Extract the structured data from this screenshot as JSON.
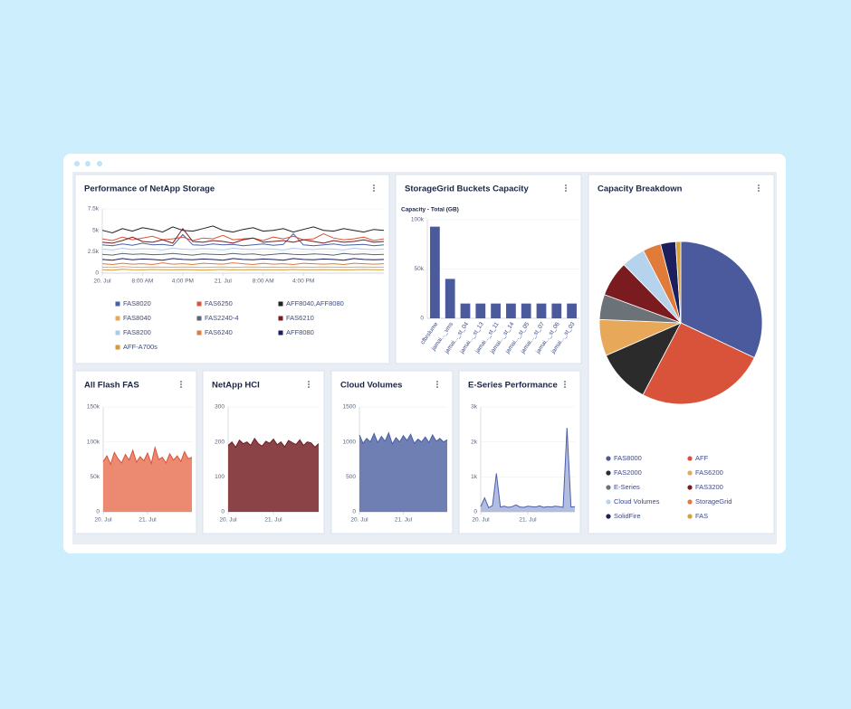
{
  "chart_data": [
    {
      "type": "line",
      "title": "Performance of NetApp Storage",
      "x": [
        0,
        2,
        4,
        6,
        8,
        10,
        12,
        14,
        16,
        18,
        20,
        22,
        24,
        26,
        28,
        30,
        32,
        34,
        36,
        38,
        40,
        42,
        44,
        46,
        48,
        50,
        52,
        54,
        56
      ],
      "xlim": [
        0,
        56
      ],
      "xticks": [
        {
          "value": 0,
          "label": "20. Jul"
        },
        {
          "value": 8,
          "label": "8:00 AM"
        },
        {
          "value": 16,
          "label": "4:00 PM"
        },
        {
          "value": 24,
          "label": "21. Jul"
        },
        {
          "value": 32,
          "label": "8:00 AM"
        },
        {
          "value": 40,
          "label": "4:00 PM"
        }
      ],
      "ylim": [
        0,
        7500
      ],
      "yticks": [
        0,
        {
          "value": 2500,
          "label": "2.5k"
        },
        {
          "value": 5000,
          "label": "5k"
        },
        {
          "value": 7500,
          "label": "7.5k"
        }
      ],
      "grid": true,
      "series": [
        {
          "name": "FAS8020",
          "color": "#4a5fa8",
          "values": [
            3300,
            3200,
            3400,
            3250,
            3500,
            3300,
            3350,
            3200,
            4500,
            3300,
            3250,
            3400,
            3300,
            3350,
            3200,
            3300,
            3400,
            3250,
            3350,
            4600,
            3300,
            3200,
            3300,
            3400,
            3250,
            3300,
            3350,
            3200,
            3300
          ]
        },
        {
          "name": "FAS6250",
          "color": "#d9533a",
          "values": [
            4000,
            3800,
            4200,
            3900,
            4100,
            4300,
            3900,
            4000,
            4200,
            3800,
            4100,
            4000,
            4400,
            3900,
            4000,
            4100,
            3800,
            4200,
            4000,
            4300,
            3900,
            4000,
            4600,
            4100,
            3900,
            4000,
            4200,
            3800,
            4000
          ]
        },
        {
          "name": "AFF8040,AFF8080",
          "color": "#222222",
          "values": [
            5000,
            4700,
            5200,
            4900,
            5300,
            5100,
            4800,
            5400,
            5000,
            4900,
            5200,
            5500,
            5000,
            4800,
            5100,
            5300,
            4900,
            5000,
            5200,
            4800,
            5100,
            5400,
            5000,
            4900,
            5200,
            5000,
            4800,
            5100,
            5000
          ]
        },
        {
          "name": "FAS8040",
          "color": "#e8a85a",
          "values": [
            700,
            650,
            750,
            700,
            680,
            720,
            700,
            690,
            710,
            700,
            650,
            700,
            720,
            680,
            700,
            710,
            690,
            700,
            680,
            720,
            700,
            690,
            710,
            700,
            680,
            700,
            720,
            690,
            700
          ]
        },
        {
          "name": "FAS2240-4",
          "color": "#5d6670",
          "values": [
            2200,
            2100,
            2300,
            2200,
            2250,
            2150,
            2200,
            2300,
            2200,
            2100,
            2250,
            2200,
            2150,
            2300,
            2200,
            2250,
            2100,
            2200,
            2300,
            2200,
            2150,
            2250,
            2200,
            2100,
            2300,
            2200,
            2250,
            2150,
            2200
          ]
        },
        {
          "name": "FAS6210",
          "color": "#7a1c1f",
          "values": [
            3600,
            3500,
            3800,
            4200,
            3700,
            3600,
            3900,
            3500,
            5200,
            3700,
            3600,
            3800,
            3700,
            3500,
            3900,
            4100,
            3600,
            3700,
            3800,
            3600,
            3900,
            3700,
            3500,
            3800,
            3600,
            3700,
            3900,
            3600,
            3700
          ]
        },
        {
          "name": "FAS8200",
          "color": "#a9cbe8",
          "values": [
            2800,
            2700,
            2900,
            2750,
            2850,
            2800,
            2700,
            2900,
            2800,
            2750,
            2850,
            2800,
            2700,
            2900,
            2800,
            2750,
            2850,
            2800,
            2700,
            2900,
            2800,
            2750,
            2850,
            2800,
            2700,
            2900,
            2800,
            2750,
            2800
          ]
        },
        {
          "name": "FAS6240",
          "color": "#e07b39",
          "values": [
            1100,
            1000,
            1150,
            1050,
            1100,
            1000,
            1200,
            1050,
            1100,
            1000,
            1150,
            1100,
            1050,
            1200,
            1100,
            1000,
            1150,
            1050,
            1100,
            1000,
            1150,
            1100,
            1050,
            1100,
            1000,
            1150,
            1100,
            1050,
            1100
          ]
        },
        {
          "name": "AFF8080",
          "color": "#1c1f5e",
          "values": [
            1600,
            1500,
            1700,
            1550,
            1650,
            1600,
            1500,
            1700,
            1600,
            1550,
            1650,
            1600,
            1500,
            1700,
            1600,
            1550,
            1650,
            1600,
            1500,
            1700,
            1600,
            1550,
            1650,
            1600,
            1500,
            1700,
            1600,
            1550,
            1600
          ]
        },
        {
          "name": "AFF-A700s",
          "color": "#d69a3a",
          "values": [
            400,
            350,
            450,
            400,
            380,
            420,
            400,
            390,
            410,
            400,
            350,
            400,
            420,
            380,
            400,
            410,
            390,
            400,
            380,
            420,
            400,
            390,
            410,
            400,
            380,
            400,
            420,
            390,
            400
          ]
        }
      ]
    },
    {
      "type": "bar",
      "title": "StorageGrid Buckets Capacity",
      "y_label": "Capacity - Total (GB)",
      "color": "#4a5a9c",
      "categories": [
        "cfbrslume",
        "jamai..._vms",
        "jamai..._st_04",
        "jamai..._st_13",
        "jamai..._st_11",
        "jamai..._st_14",
        "jamai..._st_05",
        "jamai..._st_07",
        "jamai..._st_06",
        "jamai..._st_03"
      ],
      "values": [
        93000,
        40000,
        15000,
        15000,
        15000,
        15000,
        15000,
        15000,
        15000,
        15000
      ],
      "ylim": [
        0,
        100000
      ],
      "yticks": [
        0,
        {
          "value": 50000,
          "label": "50k"
        },
        {
          "value": 100000,
          "label": "100k"
        }
      ],
      "grid": true
    },
    {
      "type": "pie",
      "title": "Capacity Breakdown",
      "categories": [
        "FAS8000",
        "AFF",
        "FAS2000",
        "FAS6200",
        "E-Series",
        "FAS3200",
        "Cloud Volumes",
        "StorageGrid",
        "SolidFire",
        "FAS"
      ],
      "values": [
        32,
        25.6,
        10.7,
        7.2,
        5,
        7,
        4.7,
        3.6,
        3,
        1
      ],
      "colors": [
        "#4a5a9c",
        "#d9533a",
        "#2b2b2b",
        "#e8a85a",
        "#6b7278",
        "#7a1c1f",
        "#b5d3ec",
        "#e07b39",
        "#1c1f5e",
        "#d6a23a"
      ]
    },
    {
      "type": "area",
      "title": "All Flash FAS",
      "color": "#d9533a",
      "fill": "#eb8a70",
      "x": [
        0,
        2,
        4,
        6,
        8,
        10,
        12,
        14,
        16,
        18,
        20,
        22,
        24,
        26,
        28,
        30,
        32,
        34,
        36,
        38,
        40,
        42,
        44,
        46,
        48
      ],
      "values": [
        72000,
        80000,
        68000,
        85000,
        76000,
        70000,
        82000,
        74000,
        88000,
        71000,
        79000,
        73000,
        84000,
        69000,
        92000,
        75000,
        78000,
        70000,
        83000,
        74000,
        80000,
        72000,
        86000,
        76000,
        78000
      ],
      "xlim": [
        0,
        48
      ],
      "xticks": [
        {
          "value": 0,
          "label": "20. Jul"
        },
        {
          "value": 24,
          "label": "21. Jul"
        }
      ],
      "ylim": [
        0,
        150000
      ],
      "yticks": [
        0,
        {
          "value": 50000,
          "label": "50k"
        },
        {
          "value": 100000,
          "label": "100k"
        },
        {
          "value": 150000,
          "label": "150k"
        }
      ],
      "grid": true
    },
    {
      "type": "area",
      "title": "NetApp HCI",
      "color": "#6e1f24",
      "fill": "#8b4347",
      "x": [
        0,
        2,
        4,
        6,
        8,
        10,
        12,
        14,
        16,
        18,
        20,
        22,
        24,
        26,
        28,
        30,
        32,
        34,
        36,
        38,
        40,
        42,
        44,
        46,
        48
      ],
      "values": [
        190,
        200,
        185,
        205,
        195,
        200,
        190,
        210,
        195,
        188,
        202,
        196,
        208,
        192,
        200,
        186,
        204,
        198,
        193,
        206,
        190,
        200,
        197,
        185,
        195
      ],
      "xlim": [
        0,
        48
      ],
      "xticks": [
        {
          "value": 0,
          "label": "20. Jul"
        },
        {
          "value": 24,
          "label": "21. Jul"
        }
      ],
      "ylim": [
        0,
        300
      ],
      "yticks": [
        0,
        100,
        200,
        300
      ],
      "grid": true
    },
    {
      "type": "area",
      "title": "Cloud Volumes",
      "color": "#4a5fa8",
      "fill": "#6f7fb3",
      "x": [
        0,
        2,
        4,
        6,
        8,
        10,
        12,
        14,
        16,
        18,
        20,
        22,
        24,
        26,
        28,
        30,
        32,
        34,
        36,
        38,
        40,
        42,
        44,
        46,
        48
      ],
      "values": [
        1100,
        980,
        1050,
        1000,
        1120,
        990,
        1080,
        1010,
        1130,
        970,
        1060,
        1000,
        1090,
        1020,
        1110,
        980,
        1040,
        1000,
        1070,
        990,
        1100,
        1010,
        1050,
        1000,
        1030
      ],
      "xlim": [
        0,
        48
      ],
      "xticks": [
        {
          "value": 0,
          "label": "20. Jul"
        },
        {
          "value": 24,
          "label": "21. Jul"
        }
      ],
      "ylim": [
        0,
        1500
      ],
      "yticks": [
        0,
        500,
        1000,
        1500
      ],
      "grid": true
    },
    {
      "type": "area",
      "title": "E-Series Performance",
      "color": "#4a5fa8",
      "fill": "#b3bde0",
      "x": [
        0,
        2,
        4,
        6,
        8,
        10,
        12,
        14,
        16,
        18,
        20,
        22,
        24,
        26,
        28,
        30,
        32,
        34,
        36,
        38,
        40,
        42,
        44,
        46,
        48
      ],
      "values": [
        150,
        400,
        120,
        180,
        1100,
        140,
        160,
        130,
        150,
        200,
        140,
        130,
        160,
        150,
        140,
        170,
        130,
        150,
        140,
        160,
        150,
        130,
        2400,
        140,
        150
      ],
      "xlim": [
        0,
        48
      ],
      "xticks": [
        {
          "value": 0,
          "label": "20. Jul"
        },
        {
          "value": 24,
          "label": "21. Jul"
        }
      ],
      "ylim": [
        0,
        3000
      ],
      "yticks": [
        0,
        {
          "value": 1000,
          "label": "1k"
        },
        {
          "value": 2000,
          "label": "2k"
        },
        {
          "value": 3000,
          "label": "3k"
        }
      ],
      "grid": true
    }
  ]
}
